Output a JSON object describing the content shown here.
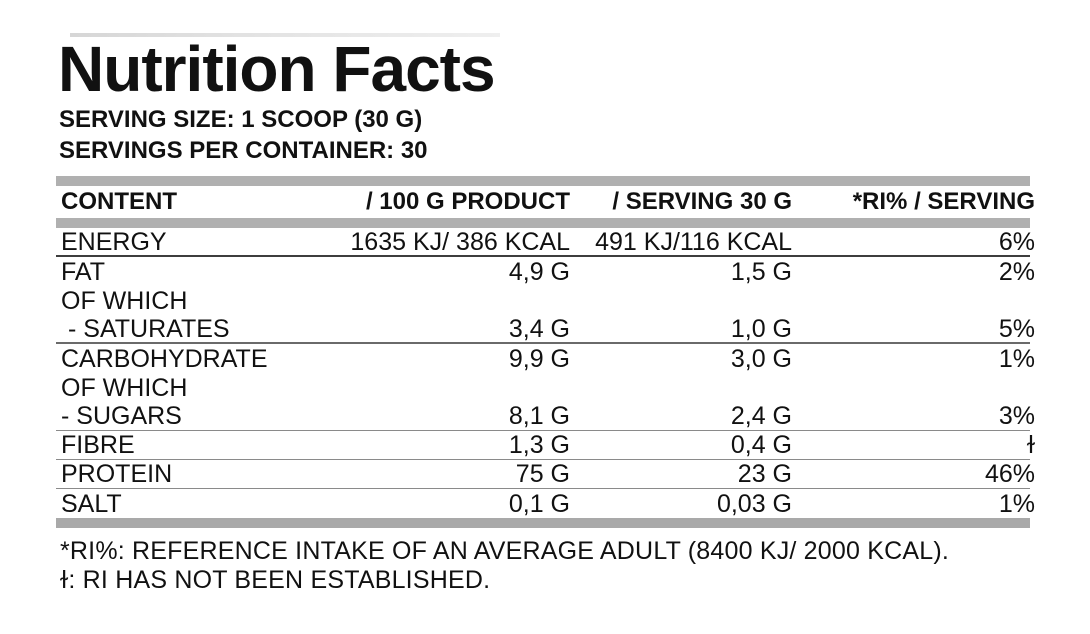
{
  "title": "Nutrition Facts",
  "serving_info": {
    "serving_size": "SERVING SIZE: 1 SCOOP (30 G)",
    "servings_per_container": "SERVINGS PER CONTAINER: 30"
  },
  "table": {
    "headers": {
      "content": "CONTENT",
      "per_100g": "/ 100 G PRODUCT",
      "per_serving": "/ SERVING 30 G",
      "ri_percent": "*RI% / SERVING"
    },
    "rows": [
      {
        "label": "ENERGY",
        "per_100g": "1635 KJ/ 386 KCAL",
        "per_serving": "491 KJ/116 KCAL",
        "ri": "6%"
      },
      {
        "label": "FAT",
        "per_100g": "4,9 G",
        "per_serving": "1,5 G",
        "ri": "2%"
      },
      {
        "label": "OF WHICH",
        "per_100g": "",
        "per_serving": "",
        "ri": ""
      },
      {
        "label": "- SATURATES",
        "per_100g": "3,4 G",
        "per_serving": "1,0 G",
        "ri": "5%"
      },
      {
        "label": "CARBOHYDRATE",
        "per_100g": "9,9 G",
        "per_serving": "3,0 G",
        "ri": "1%"
      },
      {
        "label": "OF WHICH",
        "per_100g": "",
        "per_serving": "",
        "ri": ""
      },
      {
        "label": "- SUGARS",
        "per_100g": "8,1 G",
        "per_serving": "2,4 G",
        "ri": "3%"
      },
      {
        "label": "FIBRE",
        "per_100g": "1,3 G",
        "per_serving": "0,4 G",
        "ri": "ɫ"
      },
      {
        "label": "PROTEIN",
        "per_100g": "75 G",
        "per_serving": "23 G",
        "ri": "46%"
      },
      {
        "label": "SALT",
        "per_100g": "0,1 G",
        "per_serving": "0,03 G",
        "ri": "1%"
      }
    ]
  },
  "footnotes": {
    "ri_note": "*RI%: REFERENCE INTAKE OF AN AVERAGE ADULT (8400 KJ/ 2000 KCAL).",
    "not_established_note": "ɫ: RI HAS NOT BEEN ESTABLISHED."
  },
  "colors": {
    "background": "#ffffff",
    "text": "#111111",
    "divider_bar": "#b0b0b0",
    "row_separator_strong": "#3d3d3d",
    "row_separator_light": "#8a8a8a"
  }
}
